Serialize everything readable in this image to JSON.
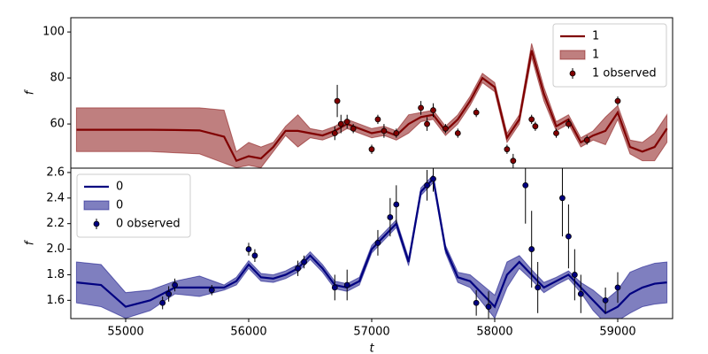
{
  "chart_data": [
    {
      "type": "line",
      "ylabel": "f",
      "legend": "upper right",
      "xlim": [
        54554,
        59446
      ],
      "ylim": [
        40.8,
        106.2
      ],
      "yticks": [
        60,
        80,
        100
      ],
      "x": [
        54600,
        54800,
        55000,
        55200,
        55400,
        55600,
        55800,
        55900,
        56000,
        56100,
        56200,
        56300,
        56400,
        56500,
        56600,
        56700,
        56800,
        56900,
        57000,
        57100,
        57200,
        57300,
        57400,
        57500,
        57600,
        57700,
        57800,
        57900,
        58000,
        58100,
        58200,
        58300,
        58400,
        58500,
        58600,
        58700,
        58800,
        58900,
        59000,
        59100,
        59200,
        59300,
        59400
      ],
      "series": [
        {
          "name": "1",
          "color": "#800000",
          "values": [
            57.5,
            57.5,
            57.5,
            57.5,
            57.4,
            57.2,
            54.5,
            44,
            46,
            45,
            50,
            57,
            57,
            56,
            55,
            57,
            60,
            58,
            56,
            57,
            55,
            60,
            63,
            64,
            57,
            62,
            70,
            80,
            76,
            54,
            62,
            92,
            73,
            59,
            62,
            52,
            55,
            57,
            65,
            50,
            48,
            50,
            58
          ]
        },
        {
          "name": "1",
          "type": "band",
          "color": "#800000",
          "lower": [
            48,
            48,
            48,
            48,
            47.5,
            47,
            43,
            41,
            42,
            41,
            48,
            55,
            50,
            54,
            53,
            55,
            58,
            56,
            54,
            55,
            53,
            56,
            61,
            62,
            55,
            60,
            68,
            78,
            74,
            52,
            60,
            89,
            70,
            57,
            60,
            50,
            53,
            51,
            62,
            47,
            44,
            44,
            52
          ],
          "upper": [
            67,
            67,
            67,
            67,
            67,
            67,
            66,
            48,
            52,
            50,
            52,
            59,
            64,
            58,
            57,
            59,
            62,
            60,
            58,
            59,
            57,
            64,
            65,
            66,
            59,
            64,
            72,
            82,
            78,
            56,
            64,
            95,
            76,
            61,
            64,
            54,
            57,
            63,
            68,
            53,
            52,
            56,
            64
          ]
        },
        {
          "name": "1 observed",
          "type": "errorbar",
          "color": "#800000",
          "x": [
            56700,
            56720,
            56750,
            56800,
            56850,
            57000,
            57050,
            57100,
            57200,
            57400,
            57450,
            57500,
            57600,
            57700,
            57850,
            58100,
            58150,
            58300,
            58330,
            58500,
            58600,
            58750,
            59000
          ],
          "values": [
            56,
            70,
            60,
            61,
            58,
            49,
            62,
            57,
            56,
            67,
            60,
            66,
            58,
            56,
            65,
            49,
            44,
            62,
            59,
            56,
            60,
            53,
            70
          ],
          "errors": [
            3,
            7,
            4,
            3,
            2,
            2,
            2,
            3,
            2,
            3,
            3,
            3,
            2,
            2,
            2,
            2,
            3,
            2,
            2,
            2,
            2,
            2,
            2
          ]
        }
      ]
    },
    {
      "type": "line",
      "ylabel": "f",
      "xlabel": "t",
      "legend": "upper left",
      "xlim": [
        54554,
        59446
      ],
      "ylim": [
        1.457,
        2.634
      ],
      "xticks": [
        55000,
        56000,
        57000,
        58000,
        59000
      ],
      "yticks": [
        {
          "value": 1.6,
          "label": "1.6"
        },
        {
          "value": 1.8,
          "label": "1.8"
        },
        {
          "value": 2,
          "label": "2.0"
        },
        {
          "value": 2.2,
          "label": "2.2"
        },
        {
          "value": 2.4,
          "label": "2.4"
        },
        {
          "value": 2.6,
          "label": "2.6"
        }
      ],
      "x": [
        54600,
        54800,
        55000,
        55200,
        55400,
        55600,
        55800,
        55900,
        56000,
        56100,
        56200,
        56300,
        56400,
        56500,
        56600,
        56700,
        56800,
        56900,
        57000,
        57100,
        57200,
        57300,
        57400,
        57500,
        57600,
        57700,
        57800,
        57900,
        58000,
        58100,
        58200,
        58300,
        58400,
        58500,
        58600,
        58700,
        58800,
        58900,
        59000,
        59100,
        59200,
        59300,
        59400
      ],
      "series": [
        {
          "name": "0",
          "color": "#000080",
          "values": [
            1.74,
            1.72,
            1.55,
            1.6,
            1.7,
            1.7,
            1.7,
            1.75,
            1.88,
            1.78,
            1.77,
            1.8,
            1.85,
            1.95,
            1.85,
            1.72,
            1.7,
            1.75,
            2.0,
            2.1,
            2.2,
            1.9,
            2.45,
            2.55,
            2.0,
            1.78,
            1.75,
            1.65,
            1.55,
            1.8,
            1.9,
            1.8,
            1.7,
            1.75,
            1.8,
            1.7,
            1.6,
            1.5,
            1.55,
            1.65,
            1.7,
            1.73,
            1.74
          ]
        },
        {
          "name": "0",
          "type": "band",
          "color": "#000080",
          "lower": [
            1.58,
            1.55,
            1.46,
            1.52,
            1.65,
            1.63,
            1.68,
            1.72,
            1.85,
            1.75,
            1.74,
            1.77,
            1.82,
            1.92,
            1.82,
            1.69,
            1.67,
            1.72,
            1.97,
            2.07,
            2.17,
            1.87,
            2.42,
            2.52,
            1.97,
            1.74,
            1.7,
            1.58,
            1.46,
            1.7,
            1.85,
            1.76,
            1.66,
            1.72,
            1.77,
            1.66,
            1.52,
            1.42,
            1.44,
            1.5,
            1.55,
            1.57,
            1.58
          ],
          "upper": [
            1.9,
            1.88,
            1.66,
            1.68,
            1.75,
            1.79,
            1.72,
            1.78,
            1.91,
            1.81,
            1.8,
            1.83,
            1.88,
            1.98,
            1.88,
            1.75,
            1.73,
            1.78,
            2.03,
            2.13,
            2.23,
            1.93,
            2.48,
            2.58,
            2.03,
            1.82,
            1.8,
            1.72,
            1.64,
            1.9,
            1.95,
            1.84,
            1.74,
            1.78,
            1.83,
            1.74,
            1.68,
            1.6,
            1.68,
            1.82,
            1.86,
            1.89,
            1.9
          ]
        },
        {
          "name": "0 observed",
          "type": "errorbar",
          "color": "#000080",
          "x": [
            55300,
            55350,
            55400,
            55700,
            56000,
            56050,
            56400,
            56450,
            56700,
            56800,
            57050,
            57150,
            57200,
            57450,
            57500,
            57850,
            57950,
            58250,
            58300,
            58350,
            58550,
            58600,
            58650,
            58700,
            58900,
            59000
          ],
          "values": [
            1.58,
            1.65,
            1.72,
            1.68,
            2.0,
            1.95,
            1.85,
            1.9,
            1.7,
            1.72,
            2.05,
            2.25,
            2.35,
            2.5,
            2.55,
            1.58,
            1.55,
            2.5,
            2.0,
            1.7,
            2.4,
            2.1,
            1.8,
            1.65,
            1.6,
            1.7
          ],
          "errors": [
            0.05,
            0.06,
            0.05,
            0.04,
            0.05,
            0.05,
            0.06,
            0.05,
            0.1,
            0.12,
            0.1,
            0.15,
            0.15,
            0.12,
            0.1,
            0.1,
            0.12,
            0.3,
            0.3,
            0.2,
            0.3,
            0.25,
            0.2,
            0.15,
            0.1,
            0.12
          ]
        }
      ]
    }
  ]
}
